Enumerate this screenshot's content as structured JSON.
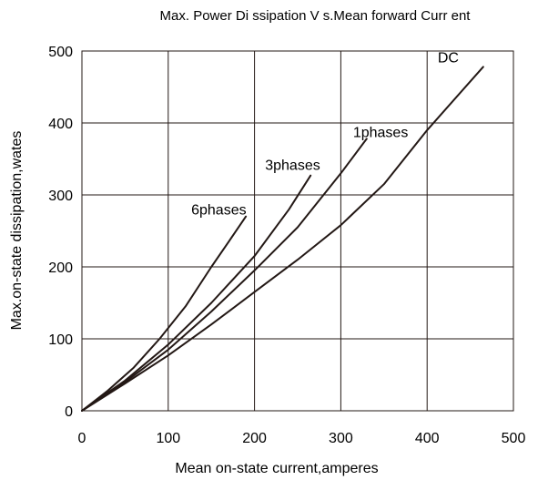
{
  "chart_data": {
    "type": "line",
    "title": "Max. Power Di ssipation V s.Mean forward Curr ent",
    "xlabel": "Mean on-state current,amperes",
    "ylabel": "Max.on-state dissipation,wates",
    "xlim": [
      0,
      500
    ],
    "ylim": [
      0,
      500
    ],
    "xticks": [
      "0",
      "100",
      "200",
      "300",
      "400",
      "500"
    ],
    "yticks": [
      "0",
      "100",
      "200",
      "300",
      "400",
      "500"
    ],
    "grid": true,
    "legend": "none",
    "line_color": "#231815",
    "series": [
      {
        "name": "6phases",
        "x": [
          0,
          30,
          60,
          90,
          120,
          150,
          170,
          190
        ],
        "y": [
          0,
          28,
          60,
          100,
          145,
          200,
          235,
          270
        ]
      },
      {
        "name": "3phases",
        "x": [
          0,
          50,
          100,
          150,
          200,
          240,
          265
        ],
        "y": [
          0,
          42,
          92,
          150,
          215,
          280,
          327
        ]
      },
      {
        "name": "1phases",
        "x": [
          0,
          50,
          100,
          150,
          200,
          250,
          300,
          330
        ],
        "y": [
          0,
          40,
          85,
          138,
          195,
          255,
          330,
          378
        ]
      },
      {
        "name": "DC",
        "x": [
          0,
          50,
          100,
          150,
          200,
          250,
          300,
          350,
          400,
          465
        ],
        "y": [
          0,
          38,
          77,
          120,
          165,
          210,
          258,
          315,
          390,
          478
        ]
      }
    ]
  }
}
